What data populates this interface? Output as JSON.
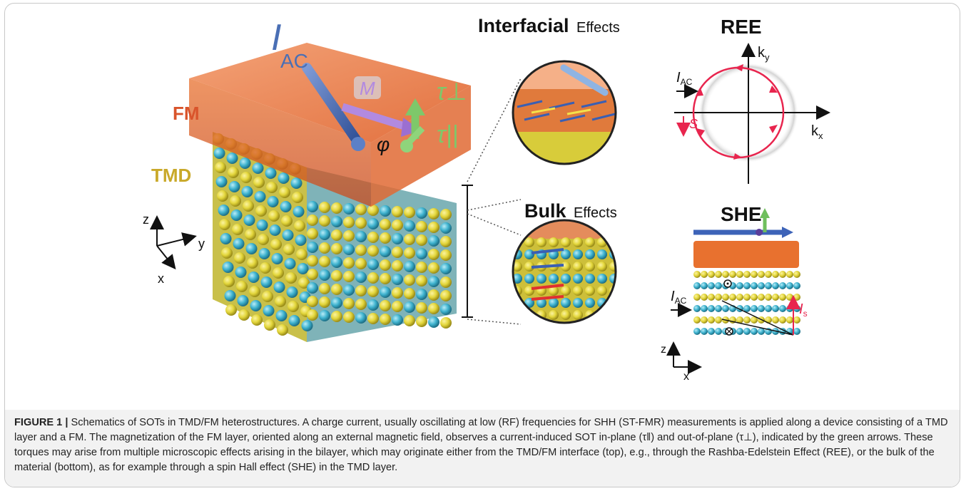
{
  "figure": {
    "labels": {
      "current": "I",
      "current_sub": "AC",
      "magnetization": "M",
      "angle": "φ",
      "torque_perp": "τ⊥",
      "torque_par": "τ||",
      "fm": "FM",
      "tmd": "TMD",
      "axis_z": "z",
      "axis_y": "y",
      "axis_x": "x",
      "interfacial_bold": "Interfacial",
      "interfacial_rest": "Effects",
      "bulk_bold": "Bulk",
      "bulk_rest": "Effects",
      "ree_title": "REE",
      "ree_ky": "k",
      "ree_ky_sub": "y",
      "ree_kx": "k",
      "ree_kx_sub": "x",
      "ree_s": "S",
      "she_title": "SHE",
      "she_is": "I",
      "she_is_sub": "s",
      "she_z": "z",
      "she_x": "x"
    },
    "colors": {
      "fm_slab": "#e0642e",
      "tmd_yellow": "#e3d63b",
      "tmd_cyan": "#3fb3cf",
      "current_blue": "#4a6fb5",
      "magnetization_purple": "#b28ae0",
      "torque_green": "#7ec86a",
      "fm_label": "#d9542b",
      "tmd_label": "#c9a92a",
      "ree_red": "#e8254e"
    }
  },
  "caption": {
    "lead": "FIGURE 1 |",
    "body": " Schematics of SOTs in TMD/FM heterostructures. A charge current, usually oscillating at low (RF) frequencies for SHH (ST-FMR) measurements is applied along a device consisting of a TMD layer and a FM. The magnetization of the FM layer, oriented along an external magnetic field, observes a current-induced SOT in-plane (τ‖) and out-of-plane (τ⊥), indicated by the green arrows. These torques may arise from multiple microscopic effects arising in the bilayer, which may originate either from the TMD/FM interface (top), e.g., through the Rashba-Edelstein Effect (REE), or the bulk of the material (bottom), as for example through a spin Hall effect (SHE) in the TMD layer."
  }
}
